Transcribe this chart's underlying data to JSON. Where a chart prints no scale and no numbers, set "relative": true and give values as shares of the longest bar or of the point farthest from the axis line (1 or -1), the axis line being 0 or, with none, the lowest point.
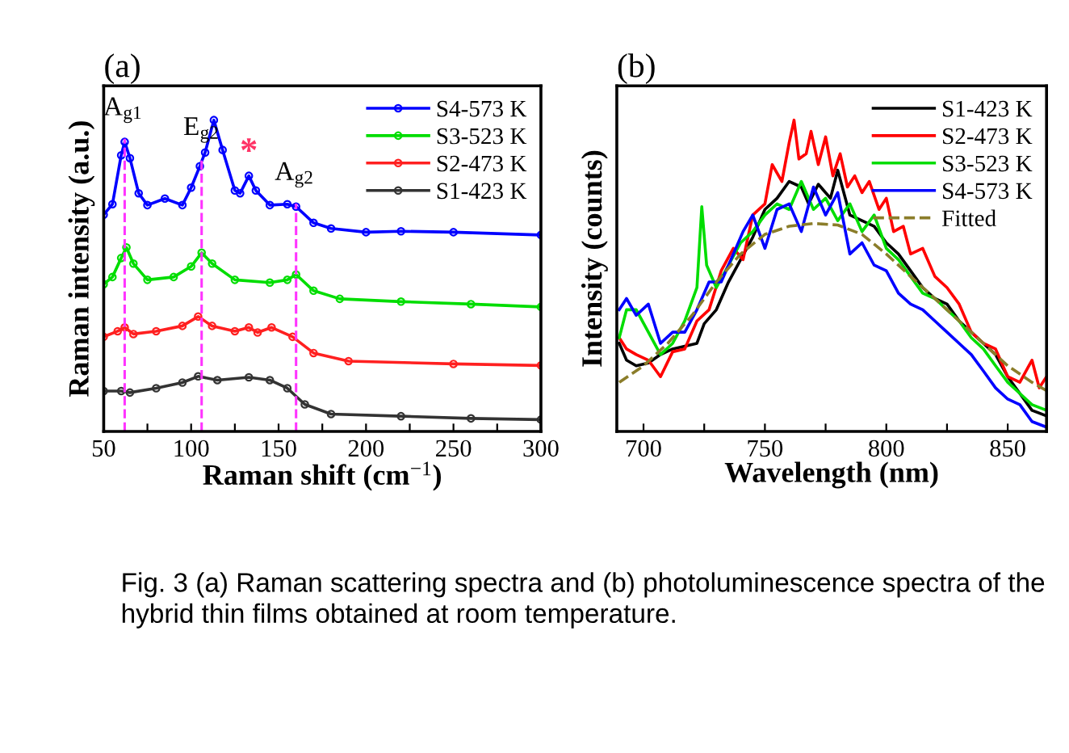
{
  "chart_data": [
    {
      "type": "line",
      "title": "(a)",
      "xlabel": "Raman shift (cm$^{−1}$)",
      "ylabel": "Raman intensity (a.u.)",
      "relative": true,
      "xlim": [
        50,
        300
      ],
      "xticks": [
        50,
        {
          "value": 75,
          "label": null
        },
        100,
        {
          "value": 125,
          "label": null
        },
        150,
        {
          "value": 175,
          "label": null
        },
        200,
        {
          "value": 225,
          "label": null
        },
        250,
        {
          "value": 275,
          "label": null
        },
        300
      ],
      "tick_labels": "x",
      "legend": "top right",
      "marker": "circle",
      "line_style": "solid",
      "grid": false,
      "ref_lines": [
        {
          "axis": "x",
          "value": 62,
          "label": "A$_{g1}$",
          "color": "#ff33ff",
          "line_style": "dashed"
        },
        {
          "axis": "x",
          "value": 106,
          "label": "E$_{g2}$",
          "color": "#ff33ff",
          "line_style": "dashed"
        },
        {
          "axis": "x",
          "value": 160,
          "label": "A$_{g2}$",
          "color": "#ff33ff",
          "line_style": "dashed"
        }
      ],
      "annotations": [
        {
          "text": "*",
          "x": 133,
          "y": 0.821
        },
        "Fig. 3 (a) Raman scattering spectra and (b) photoluminescence spectra of the hybrid thin films obtained at room temperature."
      ],
      "series": [
        {
          "name": "S4-573 K",
          "color": "#0000ff",
          "x": [
            50,
            55,
            60,
            62,
            65,
            70,
            75,
            85,
            95,
            100,
            105,
            108,
            113,
            118,
            125,
            128,
            133,
            137,
            145,
            155,
            160,
            170,
            180,
            200,
            220,
            250,
            300
          ],
          "values": [
            0.696,
            0.73,
            0.887,
            0.93,
            0.878,
            0.765,
            0.727,
            0.748,
            0.727,
            0.783,
            0.852,
            0.896,
            1.0,
            0.904,
            0.774,
            0.765,
            0.821,
            0.774,
            0.727,
            0.73,
            0.722,
            0.67,
            0.652,
            0.64,
            0.643,
            0.64,
            0.631
          ]
        },
        {
          "name": "S3-523 K",
          "color": "#00dd00",
          "x": [
            50,
            55,
            60,
            63,
            67,
            75,
            90,
            100,
            106,
            112,
            125,
            145,
            155,
            160,
            170,
            185,
            220,
            260,
            300
          ],
          "values": [
            0.473,
            0.496,
            0.557,
            0.591,
            0.539,
            0.487,
            0.496,
            0.53,
            0.574,
            0.539,
            0.487,
            0.478,
            0.487,
            0.504,
            0.452,
            0.426,
            0.417,
            0.409,
            0.4
          ]
        },
        {
          "name": "S2-473 K",
          "color": "#ff2020",
          "x": [
            50,
            58,
            62,
            67,
            80,
            95,
            104,
            112,
            125,
            133,
            138,
            146,
            158,
            170,
            190,
            250,
            300
          ],
          "values": [
            0.304,
            0.322,
            0.334,
            0.313,
            0.322,
            0.339,
            0.369,
            0.339,
            0.322,
            0.334,
            0.318,
            0.334,
            0.304,
            0.252,
            0.226,
            0.217,
            0.212
          ]
        },
        {
          "name": "S1-423 K",
          "color": "#333333",
          "x": [
            50,
            60,
            65,
            80,
            95,
            104,
            115,
            133,
            145,
            155,
            165,
            180,
            220,
            260,
            300
          ],
          "values": [
            0.13,
            0.13,
            0.125,
            0.139,
            0.157,
            0.177,
            0.165,
            0.174,
            0.165,
            0.139,
            0.087,
            0.056,
            0.049,
            0.042,
            0.038
          ]
        }
      ]
    },
    {
      "type": "line",
      "title": "(b)",
      "xlabel": "Wavelength (nm)",
      "ylabel": "Intensity (counts)",
      "relative": true,
      "xlim": [
        689,
        866
      ],
      "xticks": [
        700,
        {
          "value": 725,
          "label": null
        },
        750,
        {
          "value": 775,
          "label": null
        },
        800,
        {
          "value": 825,
          "label": null
        },
        850
      ],
      "tick_labels": "x",
      "legend": "top right",
      "line_style": "solid",
      "grid": false,
      "series": [
        {
          "name": "S1-423 K",
          "color": "#000000",
          "x": [
            690,
            693,
            697,
            702,
            707,
            712,
            717,
            722,
            725,
            730,
            735,
            740,
            745,
            750,
            755,
            760,
            765,
            768,
            772,
            777,
            780,
            785,
            790,
            795,
            800,
            805,
            810,
            815,
            820,
            825,
            830,
            835,
            840,
            845,
            850,
            855,
            860,
            866
          ],
          "values": [
            0.283,
            0.229,
            0.211,
            0.22,
            0.247,
            0.265,
            0.274,
            0.283,
            0.346,
            0.391,
            0.48,
            0.552,
            0.624,
            0.713,
            0.749,
            0.803,
            0.785,
            0.731,
            0.794,
            0.749,
            0.839,
            0.695,
            0.677,
            0.659,
            0.606,
            0.57,
            0.516,
            0.462,
            0.427,
            0.409,
            0.355,
            0.319,
            0.283,
            0.247,
            0.176,
            0.122,
            0.068,
            0.05
          ]
        },
        {
          "name": "S2-473 K",
          "color": "#ff0000",
          "x": [
            690,
            693,
            697,
            702,
            707,
            712,
            717,
            722,
            727,
            732,
            737,
            741,
            745,
            750,
            753,
            757,
            760,
            762,
            764,
            767,
            769,
            772,
            775,
            778,
            781,
            784,
            787,
            790,
            793,
            797,
            800,
            803,
            807,
            810,
            815,
            820,
            825,
            830,
            835,
            840,
            845,
            850,
            855,
            860,
            863,
            866
          ],
          "values": [
            0.301,
            0.265,
            0.247,
            0.229,
            0.176,
            0.256,
            0.265,
            0.355,
            0.391,
            0.516,
            0.588,
            0.552,
            0.695,
            0.731,
            0.857,
            0.803,
            0.928,
            1.0,
            0.875,
            0.892,
            0.964,
            0.857,
            0.946,
            0.821,
            0.892,
            0.785,
            0.821,
            0.767,
            0.803,
            0.713,
            0.749,
            0.642,
            0.659,
            0.57,
            0.588,
            0.498,
            0.462,
            0.409,
            0.319,
            0.283,
            0.265,
            0.176,
            0.158,
            0.229,
            0.14,
            0.176
          ]
        },
        {
          "name": "S3-523 K",
          "color": "#00dd00",
          "x": [
            690,
            693,
            697,
            702,
            707,
            712,
            717,
            722,
            724,
            726,
            730,
            735,
            740,
            745,
            750,
            755,
            760,
            765,
            770,
            775,
            780,
            785,
            790,
            795,
            800,
            805,
            810,
            815,
            820,
            825,
            830,
            835,
            840,
            845,
            850,
            855,
            860,
            866
          ],
          "values": [
            0.301,
            0.391,
            0.391,
            0.319,
            0.247,
            0.283,
            0.355,
            0.462,
            0.722,
            0.534,
            0.462,
            0.534,
            0.606,
            0.642,
            0.695,
            0.731,
            0.713,
            0.803,
            0.713,
            0.749,
            0.677,
            0.731,
            0.642,
            0.695,
            0.588,
            0.552,
            0.498,
            0.444,
            0.427,
            0.391,
            0.355,
            0.301,
            0.265,
            0.211,
            0.158,
            0.122,
            0.086,
            0.068
          ]
        },
        {
          "name": "S4-573 K",
          "color": "#0000ff",
          "x": [
            690,
            693,
            697,
            702,
            707,
            712,
            717,
            722,
            727,
            732,
            737,
            741,
            745,
            750,
            755,
            760,
            765,
            770,
            775,
            780,
            785,
            790,
            795,
            800,
            805,
            810,
            815,
            820,
            825,
            830,
            835,
            840,
            845,
            850,
            855,
            860,
            866
          ],
          "values": [
            0.391,
            0.427,
            0.373,
            0.409,
            0.283,
            0.319,
            0.319,
            0.391,
            0.48,
            0.48,
            0.57,
            0.642,
            0.695,
            0.588,
            0.713,
            0.731,
            0.642,
            0.785,
            0.695,
            0.767,
            0.57,
            0.606,
            0.534,
            0.516,
            0.444,
            0.409,
            0.391,
            0.355,
            0.319,
            0.283,
            0.247,
            0.194,
            0.14,
            0.104,
            0.086,
            0.032,
            0.014
          ]
        },
        {
          "name": "Fitted",
          "color": "#8b7d2a",
          "line_style": "dashed",
          "x": [
            690,
            700,
            710,
            720,
            730,
            740,
            750,
            760,
            770,
            780,
            790,
            800,
            810,
            820,
            830,
            840,
            850,
            860,
            866
          ],
          "values": [
            0.158,
            0.211,
            0.283,
            0.373,
            0.48,
            0.57,
            0.633,
            0.659,
            0.668,
            0.663,
            0.633,
            0.57,
            0.498,
            0.427,
            0.355,
            0.283,
            0.211,
            0.158,
            0.131
          ]
        }
      ]
    }
  ]
}
